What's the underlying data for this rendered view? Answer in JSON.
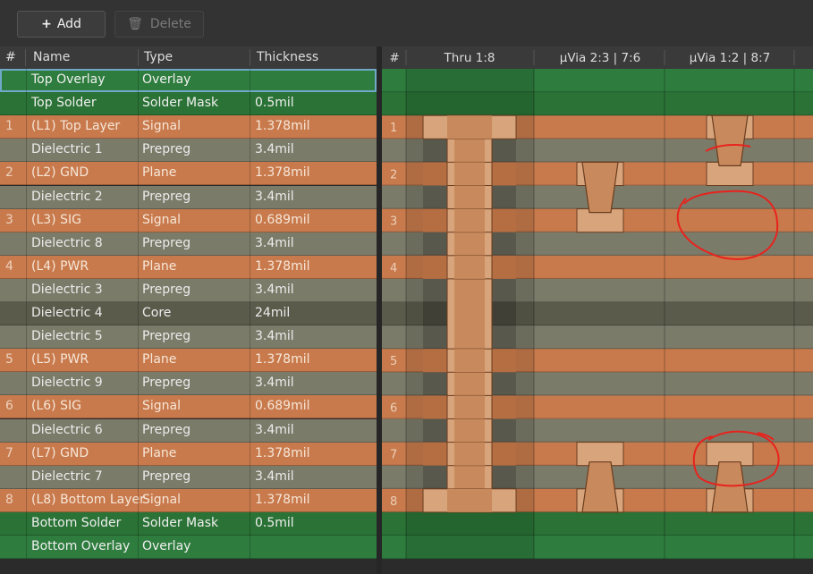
{
  "toolbar": {
    "add_label": "Add",
    "delete_label": "Delete",
    "add_icon": "plus-icon",
    "delete_icon": "trash-icon"
  },
  "table": {
    "headers": {
      "idx": "#",
      "name": "Name",
      "type": "Type",
      "thickness": "Thickness"
    },
    "rows": [
      {
        "idx": "",
        "name": "Top Overlay",
        "type": "Overlay",
        "thickness": "",
        "kind": "Overlay"
      },
      {
        "idx": "",
        "name": "Top Solder",
        "type": "Solder Mask",
        "thickness": "0.5mil",
        "kind": "Solder"
      },
      {
        "idx": "1",
        "name": "(L1) Top Layer",
        "type": "Signal",
        "thickness": "1.378mil",
        "kind": "Signal"
      },
      {
        "idx": "",
        "name": "Dielectric 1",
        "type": "Prepreg",
        "thickness": "3.4mil",
        "kind": "Prepreg"
      },
      {
        "idx": "2",
        "name": "(L2) GND",
        "type": "Plane",
        "thickness": "1.378mil",
        "kind": "Plane"
      },
      {
        "idx": "",
        "name": "Dielectric 2",
        "type": "Prepreg",
        "thickness": "3.4mil",
        "kind": "Prepreg"
      },
      {
        "idx": "3",
        "name": "(L3) SIG",
        "type": "Signal",
        "thickness": "0.689mil",
        "kind": "Signal"
      },
      {
        "idx": "",
        "name": "Dielectric 8",
        "type": "Prepreg",
        "thickness": "3.4mil",
        "kind": "Prepreg"
      },
      {
        "idx": "4",
        "name": "(L4) PWR",
        "type": "Plane",
        "thickness": "1.378mil",
        "kind": "Plane"
      },
      {
        "idx": "",
        "name": "Dielectric 3",
        "type": "Prepreg",
        "thickness": "3.4mil",
        "kind": "Prepreg"
      },
      {
        "idx": "",
        "name": "Dielectric 4",
        "type": "Core",
        "thickness": "24mil",
        "kind": "Core"
      },
      {
        "idx": "",
        "name": "Dielectric 5",
        "type": "Prepreg",
        "thickness": "3.4mil",
        "kind": "Prepreg"
      },
      {
        "idx": "5",
        "name": "(L5) PWR",
        "type": "Plane",
        "thickness": "1.378mil",
        "kind": "Plane"
      },
      {
        "idx": "",
        "name": "Dielectric 9",
        "type": "Prepreg",
        "thickness": "3.4mil",
        "kind": "Prepreg"
      },
      {
        "idx": "6",
        "name": "(L6) SIG",
        "type": "Signal",
        "thickness": "0.689mil",
        "kind": "Signal"
      },
      {
        "idx": "",
        "name": "Dielectric 6",
        "type": "Prepreg",
        "thickness": "3.4mil",
        "kind": "Prepreg"
      },
      {
        "idx": "7",
        "name": "(L7) GND",
        "type": "Plane",
        "thickness": "1.378mil",
        "kind": "Plane"
      },
      {
        "idx": "",
        "name": "Dielectric 7",
        "type": "Prepreg",
        "thickness": "3.4mil",
        "kind": "Prepreg"
      },
      {
        "idx": "8",
        "name": "(L8) Bottom Layer",
        "type": "Signal",
        "thickness": "1.378mil",
        "kind": "Signal"
      },
      {
        "idx": "",
        "name": "Bottom Solder",
        "type": "Solder Mask",
        "thickness": "0.5mil",
        "kind": "Solder"
      },
      {
        "idx": "",
        "name": "Bottom Overlay",
        "type": "Overlay",
        "thickness": "",
        "kind": "Overlay"
      }
    ]
  },
  "via_panel": {
    "headers": {
      "idx": "#",
      "thru": "Thru 1:8",
      "uvia23": "μVia 2:3 | 7:6",
      "uvia12": "μVia 1:2 | 8:7"
    }
  },
  "colors": {
    "overlay": "#2e7d3e",
    "solder": "#2a7235",
    "copper": "#c87a4c",
    "prepreg": "#7b7b6a",
    "core": "#5b5b4c",
    "via_copper": "#d7a47c",
    "annotation": "#e8231d"
  }
}
